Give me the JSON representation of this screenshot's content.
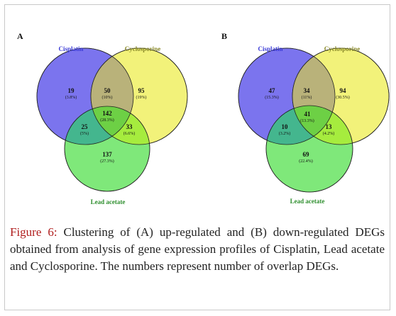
{
  "panels": [
    {
      "letter": "A",
      "sets": {
        "left": "Cisplatin",
        "right": "Cyclosporine",
        "bottom": "Lead acetate"
      },
      "regions": {
        "left_only": {
          "count": "19",
          "pct": "(3.8%)"
        },
        "left_right": {
          "count": "50",
          "pct": "(10%)"
        },
        "right_only": {
          "count": "95",
          "pct": "(19%)"
        },
        "center": {
          "count": "142",
          "pct": "(28.3%)"
        },
        "left_bottom": {
          "count": "25",
          "pct": "(5%)"
        },
        "right_bottom": {
          "count": "33",
          "pct": "(6.6%)"
        },
        "bottom_only": {
          "count": "137",
          "pct": "(27.3%)"
        }
      }
    },
    {
      "letter": "B",
      "sets": {
        "left": "Cisplatin",
        "right": "Cyclosporine",
        "bottom": "Lead acetate"
      },
      "regions": {
        "left_only": {
          "count": "47",
          "pct": "(15.3%)"
        },
        "left_right": {
          "count": "34",
          "pct": "(11%)"
        },
        "right_only": {
          "count": "94",
          "pct": "(30.5%)"
        },
        "center": {
          "count": "41",
          "pct": "(13.3%)"
        },
        "left_bottom": {
          "count": "10",
          "pct": "(3.2%)"
        },
        "right_bottom": {
          "count": "13",
          "pct": "(4.2%)"
        },
        "bottom_only": {
          "count": "69",
          "pct": "(22.4%)"
        }
      }
    }
  ],
  "colors": {
    "left": "#7b74ee",
    "right": "#f2f27a",
    "bottom": "#7fe87a",
    "left_label": "#3a3ad6",
    "right_label": "#8a8a2a",
    "bottom_label": "#2f8f2f",
    "caption_accent": "#b01e1e"
  },
  "caption": {
    "figure_label": "Figure 6:",
    "text": " Clustering of (A) up-regulated and (B) down-regulated DEGs obtained from analysis of gene expression profiles of Cisplatin, Lead acetate and Cyclosporine. The numbers represent number of overlap DEGs."
  }
}
